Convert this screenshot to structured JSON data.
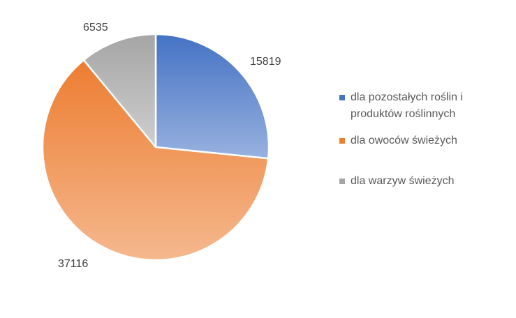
{
  "chart_data": {
    "type": "pie",
    "slices": [
      {
        "label": "dla pozostałych roślin i produktów roślinnych",
        "value": 15819,
        "color": "#4472C4"
      },
      {
        "label": "dla owoców świeżych",
        "value": 37116,
        "color": "#ED7D31"
      },
      {
        "label": "dla warzyw świeżych",
        "value": 6535,
        "color": "#A5A5A5"
      }
    ],
    "data_labels": [
      "15819",
      "37116",
      "6535"
    ],
    "legend_placement": "right",
    "start_angle": "12 o'clock",
    "direction": "clockwise"
  }
}
